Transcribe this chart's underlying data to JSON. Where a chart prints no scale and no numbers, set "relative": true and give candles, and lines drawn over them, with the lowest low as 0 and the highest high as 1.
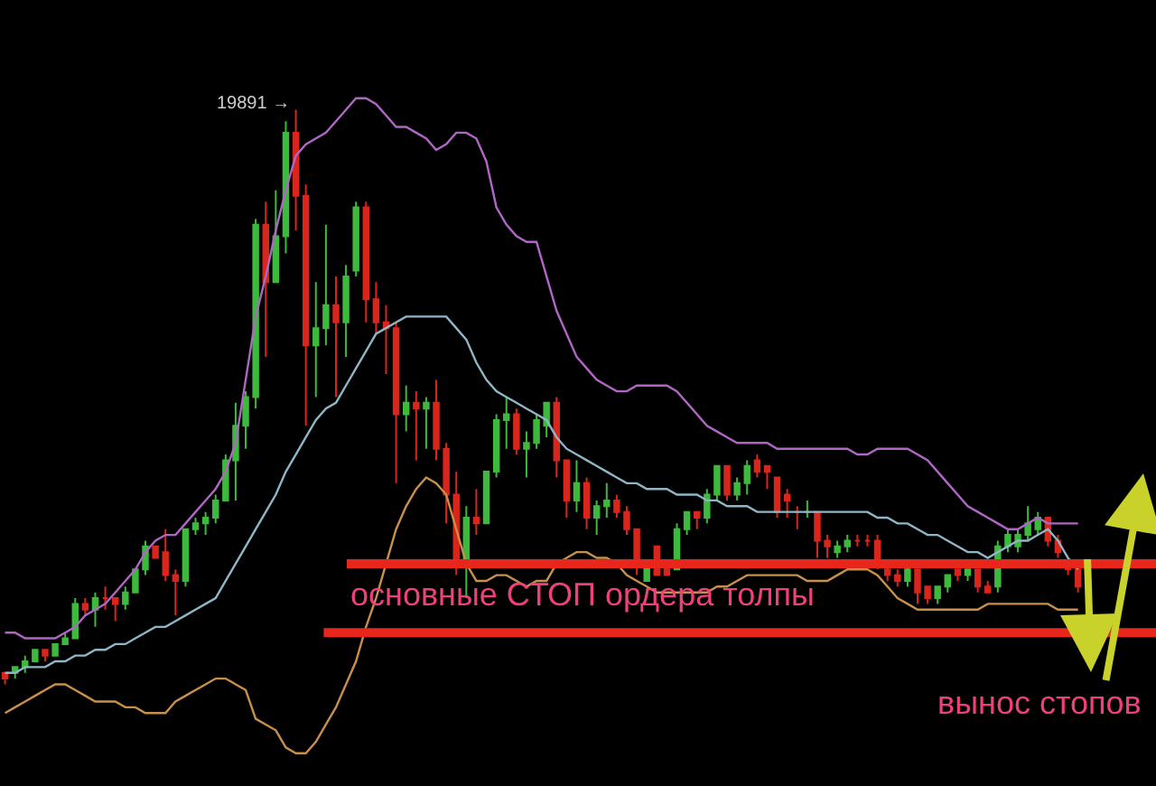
{
  "chart_data": {
    "type": "candlestick",
    "relative": true,
    "categories": [
      null,
      null,
      null,
      null,
      null,
      null,
      null,
      null,
      null,
      null,
      null,
      null,
      null,
      null,
      null,
      null,
      null,
      null,
      null,
      null,
      null,
      null,
      null,
      null,
      null,
      null,
      null,
      null,
      null,
      null,
      null,
      null,
      null,
      null,
      null,
      null,
      null,
      null,
      null,
      null,
      null,
      null,
      null,
      null,
      null,
      null,
      null,
      null,
      null,
      null,
      null,
      null,
      null,
      null,
      null,
      null,
      null,
      null,
      null,
      null,
      null,
      null,
      null,
      null,
      null,
      null,
      null,
      null,
      null,
      null,
      null,
      null,
      null,
      null,
      null,
      null,
      null,
      null,
      null,
      null,
      null,
      null,
      null,
      null,
      null,
      null,
      null,
      null,
      null,
      null,
      null,
      null,
      null,
      null,
      null,
      null,
      null,
      null,
      null,
      null,
      null,
      null,
      null,
      null,
      null,
      null,
      null,
      null
    ],
    "ohlc": [
      [
        0.02,
        0.02,
        0,
        0.01
      ],
      [
        0.02,
        0.03,
        0.01,
        0.03
      ],
      [
        0.03,
        0.05,
        0.02,
        0.04
      ],
      [
        0.04,
        0.06,
        0.04,
        0.06
      ],
      [
        0.06,
        0.06,
        0.04,
        0.05
      ],
      [
        0.05,
        0.07,
        0.05,
        0.07
      ],
      [
        0.07,
        0.09,
        0.07,
        0.08
      ],
      [
        0.08,
        0.15,
        0.08,
        0.14
      ],
      [
        0.14,
        0.15,
        0.12,
        0.13
      ],
      [
        0.13,
        0.16,
        0.1,
        0.15
      ],
      [
        0.15,
        0.17,
        0.13,
        0.15
      ],
      [
        0.15,
        0.15,
        0.11,
        0.14
      ],
      [
        0.14,
        0.17,
        0.13,
        0.16
      ],
      [
        0.16,
        0.2,
        0.16,
        0.2
      ],
      [
        0.2,
        0.25,
        0.19,
        0.24
      ],
      [
        0.24,
        0.24,
        0.22,
        0.22
      ],
      [
        0.23,
        0.27,
        0.18,
        0.19
      ],
      [
        0.19,
        0.2,
        0.12,
        0.18
      ],
      [
        0.18,
        0.27,
        0.17,
        0.27
      ],
      [
        0.27,
        0.29,
        0.26,
        0.28
      ],
      [
        0.28,
        0.3,
        0.26,
        0.29
      ],
      [
        0.29,
        0.33,
        0.28,
        0.32
      ],
      [
        0.32,
        0.4,
        0.32,
        0.39
      ],
      [
        0.39,
        0.49,
        0.32,
        0.45
      ],
      [
        0.45,
        0.51,
        0.41,
        0.5
      ],
      [
        0.5,
        0.81,
        0.48,
        0.8
      ],
      [
        0.8,
        0.84,
        0.57,
        0.7
      ],
      [
        0.7,
        0.86,
        0.7,
        0.78
      ],
      [
        0.78,
        0.98,
        0.75,
        0.96
      ],
      [
        0.96,
        1.0,
        0.79,
        0.85
      ],
      [
        0.85,
        0.87,
        0.45,
        0.59
      ],
      [
        0.59,
        0.7,
        0.5,
        0.62
      ],
      [
        0.62,
        0.8,
        0.59,
        0.66
      ],
      [
        0.66,
        0.71,
        0.5,
        0.63
      ],
      [
        0.63,
        0.73,
        0.57,
        0.71
      ],
      [
        0.72,
        0.84,
        0.71,
        0.83
      ],
      [
        0.83,
        0.84,
        0.63,
        0.67
      ],
      [
        0.67,
        0.7,
        0.61,
        0.63
      ],
      [
        0.63,
        0.66,
        0.54,
        0.62
      ],
      [
        0.62,
        0.63,
        0.35,
        0.47
      ],
      [
        0.47,
        0.52,
        0.44,
        0.49
      ],
      [
        0.49,
        0.51,
        0.39,
        0.48
      ],
      [
        0.48,
        0.5,
        0.41,
        0.49
      ],
      [
        0.49,
        0.53,
        0.39,
        0.41
      ],
      [
        0.41,
        0.42,
        0.28,
        0.33
      ],
      [
        0.33,
        0.37,
        0.19,
        0.21
      ],
      [
        0.21,
        0.31,
        0.15,
        0.29
      ],
      [
        0.29,
        0.34,
        0.26,
        0.28
      ],
      [
        0.28,
        0.37,
        0.28,
        0.37
      ],
      [
        0.37,
        0.47,
        0.36,
        0.46
      ],
      [
        0.46,
        0.5,
        0.41,
        0.47
      ],
      [
        0.47,
        0.48,
        0.4,
        0.41
      ],
      [
        0.41,
        0.44,
        0.36,
        0.42
      ],
      [
        0.42,
        0.47,
        0.41,
        0.46
      ],
      [
        0.45,
        0.49,
        0.43,
        0.49
      ],
      [
        0.49,
        0.5,
        0.36,
        0.39
      ],
      [
        0.39,
        0.39,
        0.29,
        0.32
      ],
      [
        0.32,
        0.39,
        0.3,
        0.35
      ],
      [
        0.35,
        0.36,
        0.27,
        0.29
      ],
      [
        0.29,
        0.32,
        0.26,
        0.31
      ],
      [
        0.31,
        0.35,
        0.29,
        0.32
      ],
      [
        0.32,
        0.33,
        0.29,
        0.3
      ],
      [
        0.3,
        0.31,
        0.26,
        0.27
      ],
      [
        0.27,
        0.27,
        0.19,
        0.21
      ],
      [
        0.18,
        0.21,
        0.18,
        0.21
      ],
      [
        0.24,
        0.24,
        0.19,
        0.19
      ],
      [
        0.21,
        0.21,
        0.19,
        0.19
      ],
      [
        0.2,
        0.28,
        0.2,
        0.27
      ],
      [
        0.27,
        0.3,
        0.26,
        0.3
      ],
      [
        0.3,
        0.3,
        0.27,
        0.29
      ],
      [
        0.29,
        0.34,
        0.28,
        0.33
      ],
      [
        0.33,
        0.38,
        0.32,
        0.38
      ],
      [
        0.38,
        0.38,
        0.32,
        0.33
      ],
      [
        0.33,
        0.36,
        0.32,
        0.35
      ],
      [
        0.35,
        0.39,
        0.33,
        0.38
      ],
      [
        0.39,
        0.4,
        0.36,
        0.37
      ],
      [
        0.38,
        0.38,
        0.34,
        0.37
      ],
      [
        0.36,
        0.36,
        0.29,
        0.3
      ],
      [
        0.33,
        0.34,
        0.29,
        0.32
      ],
      [
        0.3,
        0.31,
        0.27,
        0.3
      ],
      [
        0.3,
        0.32,
        0.29,
        0.3
      ],
      [
        0.3,
        0.3,
        0.22,
        0.25
      ],
      [
        0.25,
        0.26,
        0.22,
        0.24
      ],
      [
        0.23,
        0.25,
        0.22,
        0.24
      ],
      [
        0.24,
        0.26,
        0.23,
        0.25
      ],
      [
        0.25,
        0.26,
        0.24,
        0.25
      ],
      [
        0.25,
        0.26,
        0.24,
        0.25
      ],
      [
        0.25,
        0.26,
        0.2,
        0.21
      ],
      [
        0.2,
        0.21,
        0.18,
        0.19
      ],
      [
        0.19,
        0.2,
        0.17,
        0.18
      ],
      [
        0.18,
        0.21,
        0.17,
        0.2
      ],
      [
        0.2,
        0.21,
        0.14,
        0.16
      ],
      [
        0.17,
        0.17,
        0.14,
        0.15
      ],
      [
        0.15,
        0.17,
        0.14,
        0.17
      ],
      [
        0.17,
        0.19,
        0.16,
        0.19
      ],
      [
        0.2,
        0.2,
        0.18,
        0.19
      ],
      [
        0.19,
        0.2,
        0.18,
        0.2
      ],
      [
        0.2,
        0.2,
        0.16,
        0.17
      ],
      [
        0.17,
        0.18,
        0.16,
        0.16
      ],
      [
        0.17,
        0.25,
        0.16,
        0.24
      ],
      [
        0.24,
        0.27,
        0.23,
        0.26
      ],
      [
        0.24,
        0.27,
        0.23,
        0.26
      ],
      [
        0.26,
        0.31,
        0.25,
        0.28
      ],
      [
        0.27,
        0.3,
        0.26,
        0.29
      ],
      [
        0.29,
        0.29,
        0.24,
        0.25
      ],
      [
        0.25,
        0.26,
        0.22,
        0.23
      ],
      [
        0.21,
        0.22,
        0.19,
        0.2
      ],
      [
        0.2,
        0.21,
        0.16,
        0.17
      ]
    ],
    "colors": [
      "#d9261c",
      "#3dba3d",
      "#3dba3d",
      "#3dba3d",
      "#d9261c",
      "#3dba3d",
      "#3dba3d",
      "#3dba3d",
      "#d9261c",
      "#3dba3d",
      "#d9261c",
      "#d9261c",
      "#3dba3d",
      "#3dba3d",
      "#3dba3d",
      "#d9261c",
      "#d9261c",
      "#d9261c",
      "#3dba3d",
      "#3dba3d",
      "#3dba3d",
      "#3dba3d",
      "#3dba3d",
      "#3dba3d",
      "#3dba3d",
      "#3dba3d",
      "#d9261c",
      "#3dba3d",
      "#3dba3d",
      "#d9261c",
      "#d9261c",
      "#3dba3d",
      "#3dba3d",
      "#d9261c",
      "#3dba3d",
      "#3dba3d",
      "#d9261c",
      "#d9261c",
      "#d9261c",
      "#d9261c",
      "#3dba3d",
      "#d9261c",
      "#3dba3d",
      "#d9261c",
      "#d9261c",
      "#d9261c",
      "#3dba3d",
      "#d9261c",
      "#3dba3d",
      "#3dba3d",
      "#3dba3d",
      "#d9261c",
      "#3dba3d",
      "#3dba3d",
      "#3dba3d",
      "#d9261c",
      "#d9261c",
      "#3dba3d",
      "#d9261c",
      "#3dba3d",
      "#3dba3d",
      "#d9261c",
      "#d9261c",
      "#d9261c",
      "#3dba3d",
      "#d9261c",
      "#d9261c",
      "#3dba3d",
      "#3dba3d",
      "#d9261c",
      "#3dba3d",
      "#3dba3d",
      "#d9261c",
      "#3dba3d",
      "#3dba3d",
      "#d9261c",
      "#d9261c",
      "#d9261c",
      "#d9261c",
      "#d9261c",
      "#3dba3d",
      "#d9261c",
      "#d9261c",
      "#3dba3d",
      "#3dba3d",
      "#d9261c",
      "#d9261c",
      "#d9261c",
      "#d9261c",
      "#d9261c",
      "#3dba3d",
      "#d9261c",
      "#d9261c",
      "#3dba3d",
      "#3dba3d",
      "#d9261c",
      "#3dba3d",
      "#d9261c",
      "#d9261c",
      "#3dba3d",
      "#3dba3d",
      "#3dba3d",
      "#3dba3d",
      "#3dba3d",
      "#d9261c",
      "#d9261c",
      "#d9261c",
      "#d9261c"
    ],
    "series": [
      {
        "type": "line",
        "color": "#b066c4",
        "values": [
          0.09,
          0.09,
          0.08,
          0.08,
          0.08,
          0.08,
          0.09,
          0.1,
          0.12,
          0.13,
          0.14,
          0.16,
          0.18,
          0.2,
          0.23,
          0.25,
          0.26,
          0.26,
          0.28,
          0.3,
          0.32,
          0.34,
          0.37,
          0.42,
          0.53,
          0.64,
          0.71,
          0.79,
          0.86,
          0.92,
          0.94,
          0.95,
          0.96,
          0.98,
          1.0,
          1.02,
          1.02,
          1.01,
          0.99,
          0.97,
          0.97,
          0.96,
          0.95,
          0.93,
          0.94,
          0.96,
          0.96,
          0.95,
          0.91,
          0.83,
          0.8,
          0.78,
          0.77,
          0.77,
          0.71,
          0.65,
          0.61,
          0.57,
          0.55,
          0.53,
          0.52,
          0.51,
          0.51,
          0.52,
          0.52,
          0.52,
          0.52,
          0.51,
          0.49,
          0.47,
          0.45,
          0.44,
          0.43,
          0.42,
          0.42,
          0.42,
          0.42,
          0.41,
          0.41,
          0.41,
          0.41,
          0.41,
          0.41,
          0.41,
          0.41,
          0.4,
          0.4,
          0.41,
          0.41,
          0.41,
          0.41,
          0.4,
          0.39,
          0.37,
          0.35,
          0.33,
          0.31,
          0.3,
          0.29,
          0.28,
          0.27,
          0.27,
          0.28,
          0.29,
          0.28,
          0.28,
          0.28,
          0.28
        ]
      },
      {
        "type": "line",
        "color": "#8fb6c6",
        "values": [
          0.02,
          0.02,
          0.03,
          0.03,
          0.03,
          0.04,
          0.04,
          0.05,
          0.05,
          0.06,
          0.06,
          0.07,
          0.07,
          0.08,
          0.09,
          0.1,
          0.1,
          0.11,
          0.12,
          0.13,
          0.14,
          0.15,
          0.18,
          0.21,
          0.24,
          0.27,
          0.3,
          0.33,
          0.37,
          0.4,
          0.43,
          0.46,
          0.48,
          0.49,
          0.52,
          0.55,
          0.58,
          0.61,
          0.62,
          0.63,
          0.64,
          0.64,
          0.64,
          0.64,
          0.64,
          0.62,
          0.6,
          0.56,
          0.53,
          0.51,
          0.5,
          0.49,
          0.48,
          0.47,
          0.46,
          0.43,
          0.41,
          0.4,
          0.39,
          0.38,
          0.37,
          0.36,
          0.35,
          0.35,
          0.34,
          0.34,
          0.34,
          0.33,
          0.33,
          0.33,
          0.32,
          0.32,
          0.31,
          0.31,
          0.31,
          0.3,
          0.3,
          0.3,
          0.3,
          0.3,
          0.3,
          0.3,
          0.3,
          0.3,
          0.3,
          0.3,
          0.3,
          0.29,
          0.29,
          0.28,
          0.28,
          0.27,
          0.26,
          0.26,
          0.25,
          0.24,
          0.23,
          0.23,
          0.22,
          0.23,
          0.24,
          0.25,
          0.25,
          0.26,
          0.27,
          0.25,
          0.22,
          0.2
        ]
      },
      {
        "type": "line",
        "color": "#c8904a",
        "values": [
          -0.05,
          -0.04,
          -0.03,
          -0.02,
          -0.01,
          0,
          0,
          -0.01,
          -0.02,
          -0.03,
          -0.03,
          -0.03,
          -0.04,
          -0.04,
          -0.05,
          -0.05,
          -0.05,
          -0.03,
          -0.02,
          -0.01,
          0,
          0.01,
          0.01,
          0,
          -0.01,
          -0.06,
          -0.07,
          -0.08,
          -0.11,
          -0.12,
          -0.12,
          -0.1,
          -0.07,
          -0.04,
          0,
          0.04,
          0.1,
          0.15,
          0.21,
          0.27,
          0.31,
          0.34,
          0.36,
          0.35,
          0.33,
          0.27,
          0.21,
          0.18,
          0.18,
          0.19,
          0.19,
          0.18,
          0.17,
          0.18,
          0.18,
          0.21,
          0.22,
          0.23,
          0.23,
          0.22,
          0.22,
          0.21,
          0.19,
          0.18,
          0.17,
          0.16,
          0.16,
          0.16,
          0.16,
          0.16,
          0.16,
          0.17,
          0.17,
          0.18,
          0.19,
          0.19,
          0.19,
          0.19,
          0.19,
          0.19,
          0.18,
          0.18,
          0.18,
          0.19,
          0.2,
          0.2,
          0.2,
          0.19,
          0.17,
          0.15,
          0.14,
          0.13,
          0.13,
          0.13,
          0.13,
          0.13,
          0.13,
          0.13,
          0.14,
          0.14,
          0.14,
          0.14,
          0.14,
          0.14,
          0.14,
          0.13,
          0.13,
          0.13
        ]
      }
    ],
    "ref_lines": [
      {
        "axis": "y",
        "value": 0.21,
        "color": "#e8261c"
      },
      {
        "axis": "y",
        "value": 0.09,
        "color": "#e8261c"
      }
    ],
    "annotations": [
      "основные СТОП ордера толпы",
      "вынос стопов",
      "19891 →"
    ]
  }
}
